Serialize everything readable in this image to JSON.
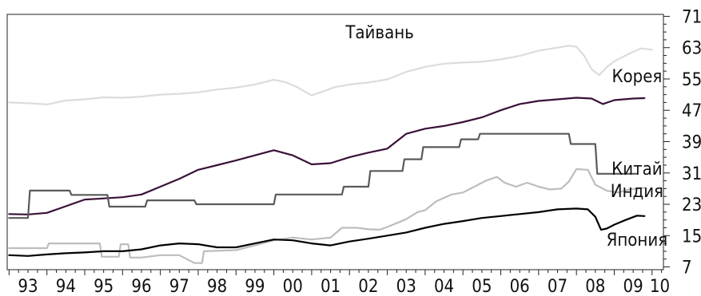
{
  "chart_data": {
    "type": "line",
    "x_ticks": [
      "93",
      "94",
      "95",
      "96",
      "97",
      "98",
      "99",
      "00",
      "01",
      "02",
      "03",
      "04",
      "05",
      "06",
      "07",
      "08",
      "09",
      "10"
    ],
    "y_ticks": [
      7,
      15,
      23,
      31,
      39,
      47,
      55,
      63,
      71
    ],
    "xlim": [
      1992.95,
      2010.3
    ],
    "ylim": [
      6.3,
      71.5
    ],
    "grid": false,
    "legend": "inline labels",
    "series": [
      {
        "name": "Тайвань",
        "color": "#dcdcdc",
        "label_at": [
          2002.8,
          65.4
        ],
        "points": [
          [
            1993.0,
            49.0
          ],
          [
            1993.5,
            48.8
          ],
          [
            1994.0,
            48.5
          ],
          [
            1994.5,
            49.5
          ],
          [
            1995.0,
            49.8
          ],
          [
            1995.5,
            50.3
          ],
          [
            1996.0,
            50.2
          ],
          [
            1996.5,
            50.5
          ],
          [
            1997.0,
            51.0
          ],
          [
            1997.5,
            51.2
          ],
          [
            1998.0,
            51.6
          ],
          [
            1998.5,
            52.3
          ],
          [
            1999.0,
            52.8
          ],
          [
            1999.5,
            53.6
          ],
          [
            2000.0,
            54.8
          ],
          [
            2000.3,
            54.2
          ],
          [
            2000.6,
            53.0
          ],
          [
            2001.0,
            50.8
          ],
          [
            2001.3,
            51.8
          ],
          [
            2001.6,
            52.9
          ],
          [
            2002.0,
            53.6
          ],
          [
            2002.5,
            54.1
          ],
          [
            2003.0,
            54.9
          ],
          [
            2003.5,
            56.8
          ],
          [
            2004.0,
            58.1
          ],
          [
            2004.5,
            58.9
          ],
          [
            2005.0,
            59.2
          ],
          [
            2005.5,
            59.4
          ],
          [
            2006.0,
            60.0
          ],
          [
            2006.5,
            60.9
          ],
          [
            2007.0,
            62.2
          ],
          [
            2007.5,
            63.0
          ],
          [
            2007.8,
            63.5
          ],
          [
            2008.0,
            63.2
          ],
          [
            2008.2,
            61.0
          ],
          [
            2008.4,
            57.5
          ],
          [
            2008.6,
            56.0
          ],
          [
            2008.8,
            58.0
          ],
          [
            2009.0,
            59.5
          ],
          [
            2009.4,
            61.5
          ],
          [
            2009.7,
            62.8
          ],
          [
            2010.0,
            62.5
          ]
        ]
      },
      {
        "name": "Корея",
        "color": "#3a1138",
        "label_at": [
          2009.6,
          54.2
        ],
        "points": [
          [
            1993.0,
            20.5
          ],
          [
            1993.5,
            20.4
          ],
          [
            1994.0,
            20.8
          ],
          [
            1994.5,
            22.5
          ],
          [
            1995.0,
            24.2
          ],
          [
            1995.5,
            24.5
          ],
          [
            1996.0,
            24.8
          ],
          [
            1996.5,
            25.5
          ],
          [
            1997.0,
            27.5
          ],
          [
            1997.5,
            29.5
          ],
          [
            1998.0,
            31.8
          ],
          [
            1998.5,
            33.0
          ],
          [
            1999.0,
            34.2
          ],
          [
            1999.5,
            35.5
          ],
          [
            2000.0,
            36.8
          ],
          [
            2000.5,
            35.5
          ],
          [
            2001.0,
            33.2
          ],
          [
            2001.5,
            33.5
          ],
          [
            2002.0,
            35.0
          ],
          [
            2002.5,
            36.2
          ],
          [
            2003.0,
            37.2
          ],
          [
            2003.5,
            41.0
          ],
          [
            2004.0,
            42.3
          ],
          [
            2004.5,
            43.0
          ],
          [
            2005.0,
            44.0
          ],
          [
            2005.5,
            45.2
          ],
          [
            2006.0,
            47.0
          ],
          [
            2006.5,
            48.6
          ],
          [
            2007.0,
            49.4
          ],
          [
            2007.5,
            49.8
          ],
          [
            2008.0,
            50.2
          ],
          [
            2008.4,
            50.0
          ],
          [
            2008.7,
            48.6
          ],
          [
            2009.0,
            49.6
          ],
          [
            2009.5,
            50.0
          ],
          [
            2009.8,
            50.1
          ]
        ]
      },
      {
        "name": "Китай",
        "color": "#5a5a5a",
        "label_at": [
          2009.6,
          30.5
        ],
        "points": [
          [
            1993.0,
            19.5
          ],
          [
            1993.5,
            19.5
          ],
          [
            1993.55,
            26.5
          ],
          [
            1994.6,
            26.5
          ],
          [
            1994.65,
            25.4
          ],
          [
            1995.6,
            25.4
          ],
          [
            1995.65,
            22.4
          ],
          [
            1996.6,
            22.4
          ],
          [
            1996.65,
            24.0
          ],
          [
            1997.9,
            24.0
          ],
          [
            1997.95,
            23.0
          ],
          [
            2000.0,
            23.0
          ],
          [
            2000.05,
            25.5
          ],
          [
            2001.8,
            25.5
          ],
          [
            2001.85,
            27.5
          ],
          [
            2002.5,
            27.5
          ],
          [
            2002.55,
            31.5
          ],
          [
            2003.4,
            31.5
          ],
          [
            2003.45,
            34.5
          ],
          [
            2003.9,
            34.5
          ],
          [
            2003.95,
            37.6
          ],
          [
            2004.9,
            37.6
          ],
          [
            2004.95,
            39.6
          ],
          [
            2005.4,
            39.6
          ],
          [
            2005.45,
            41.0
          ],
          [
            2007.8,
            41.0
          ],
          [
            2007.85,
            38.4
          ],
          [
            2008.5,
            38.4
          ],
          [
            2008.55,
            30.8
          ],
          [
            2009.6,
            30.8
          ]
        ]
      },
      {
        "name": "Индия",
        "color": "#bdbdbd",
        "label_at": [
          2009.6,
          24.8
        ],
        "points": [
          [
            1993.0,
            11.8
          ],
          [
            1994.0,
            11.8
          ],
          [
            1994.05,
            13.0
          ],
          [
            1995.4,
            13.0
          ],
          [
            1995.45,
            9.6
          ],
          [
            1995.9,
            9.6
          ],
          [
            1995.95,
            12.8
          ],
          [
            1996.15,
            12.8
          ],
          [
            1996.2,
            9.4
          ],
          [
            1996.5,
            9.4
          ],
          [
            1997.0,
            10.0
          ],
          [
            1997.5,
            10.0
          ],
          [
            1997.9,
            8.0
          ],
          [
            1998.1,
            8.0
          ],
          [
            1998.15,
            11.0
          ],
          [
            1999.0,
            11.3
          ],
          [
            1999.5,
            12.5
          ],
          [
            2000.0,
            13.8
          ],
          [
            2000.5,
            14.5
          ],
          [
            2001.0,
            14.0
          ],
          [
            2001.5,
            14.5
          ],
          [
            2001.8,
            17.0
          ],
          [
            2002.2,
            17.0
          ],
          [
            2002.5,
            16.6
          ],
          [
            2002.8,
            16.5
          ],
          [
            2003.0,
            17.2
          ],
          [
            2003.5,
            19.2
          ],
          [
            2003.8,
            21.0
          ],
          [
            2004.0,
            21.5
          ],
          [
            2004.3,
            23.8
          ],
          [
            2004.7,
            25.5
          ],
          [
            2005.0,
            26.0
          ],
          [
            2005.3,
            27.5
          ],
          [
            2005.6,
            29.0
          ],
          [
            2005.9,
            30.0
          ],
          [
            2006.1,
            28.5
          ],
          [
            2006.4,
            27.5
          ],
          [
            2006.7,
            28.5
          ],
          [
            2007.0,
            27.5
          ],
          [
            2007.3,
            26.8
          ],
          [
            2007.6,
            27.0
          ],
          [
            2007.8,
            28.8
          ],
          [
            2008.0,
            32.0
          ],
          [
            2008.3,
            31.8
          ],
          [
            2008.5,
            28.0
          ],
          [
            2008.8,
            26.5
          ],
          [
            2009.1,
            26.0
          ],
          [
            2009.4,
            26.8
          ],
          [
            2009.8,
            27.2
          ]
        ]
      },
      {
        "name": "Япония",
        "color": "#000000",
        "label_at": [
          2009.6,
          12.4
        ],
        "points": [
          [
            1993.0,
            10.0
          ],
          [
            1993.5,
            9.8
          ],
          [
            1994.0,
            10.2
          ],
          [
            1994.5,
            10.5
          ],
          [
            1995.0,
            10.7
          ],
          [
            1995.5,
            11.0
          ],
          [
            1996.0,
            11.0
          ],
          [
            1996.5,
            11.5
          ],
          [
            1997.0,
            12.5
          ],
          [
            1997.5,
            13.0
          ],
          [
            1998.0,
            12.8
          ],
          [
            1998.5,
            12.0
          ],
          [
            1999.0,
            12.0
          ],
          [
            1999.5,
            13.0
          ],
          [
            2000.0,
            14.0
          ],
          [
            2000.5,
            13.8
          ],
          [
            2001.0,
            13.0
          ],
          [
            2001.5,
            12.5
          ],
          [
            2002.0,
            13.5
          ],
          [
            2002.5,
            14.2
          ],
          [
            2003.0,
            15.0
          ],
          [
            2003.5,
            15.8
          ],
          [
            2004.0,
            17.0
          ],
          [
            2004.5,
            18.0
          ],
          [
            2005.0,
            18.7
          ],
          [
            2005.5,
            19.5
          ],
          [
            2006.0,
            20.0
          ],
          [
            2006.5,
            20.5
          ],
          [
            2007.0,
            21.0
          ],
          [
            2007.5,
            21.7
          ],
          [
            2008.0,
            21.9
          ],
          [
            2008.3,
            21.7
          ],
          [
            2008.5,
            19.8
          ],
          [
            2008.65,
            16.5
          ],
          [
            2008.8,
            16.8
          ],
          [
            2009.0,
            17.8
          ],
          [
            2009.3,
            19.0
          ],
          [
            2009.6,
            20.1
          ],
          [
            2009.8,
            20.0
          ]
        ]
      }
    ]
  }
}
